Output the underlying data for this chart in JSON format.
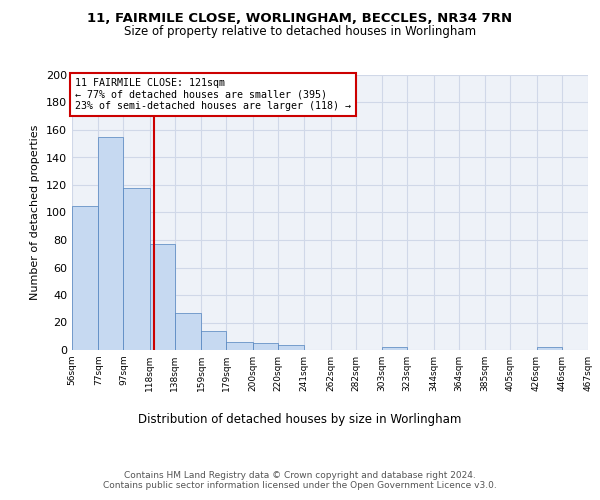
{
  "title1": "11, FAIRMILE CLOSE, WORLINGHAM, BECCLES, NR34 7RN",
  "title2": "Size of property relative to detached houses in Worlingham",
  "xlabel": "Distribution of detached houses by size in Worlingham",
  "ylabel": "Number of detached properties",
  "bin_edges": [
    56,
    77,
    97,
    118,
    138,
    159,
    179,
    200,
    220,
    241,
    262,
    282,
    303,
    323,
    344,
    364,
    385,
    405,
    426,
    446,
    467
  ],
  "bar_heights": [
    105,
    155,
    118,
    77,
    27,
    14,
    6,
    5,
    4,
    0,
    0,
    0,
    2,
    0,
    0,
    0,
    0,
    0,
    2,
    0
  ],
  "bar_color": "#c6d9f1",
  "bar_edgecolor": "#4f81bd",
  "grid_color": "#d0d8e8",
  "background_color": "#eef2f8",
  "vline_x": 121,
  "vline_color": "#cc0000",
  "annotation_text": "11 FAIRMILE CLOSE: 121sqm\n← 77% of detached houses are smaller (395)\n23% of semi-detached houses are larger (118) →",
  "annotation_box_color": "#cc0000",
  "ylim": [
    0,
    200
  ],
  "yticks": [
    0,
    20,
    40,
    60,
    80,
    100,
    120,
    140,
    160,
    180,
    200
  ],
  "footer_text": "Contains HM Land Registry data © Crown copyright and database right 2024.\nContains public sector information licensed under the Open Government Licence v3.0.",
  "tick_labels": [
    "56sqm",
    "77sqm",
    "97sqm",
    "118sqm",
    "138sqm",
    "159sqm",
    "179sqm",
    "200sqm",
    "220sqm",
    "241sqm",
    "262sqm",
    "282sqm",
    "303sqm",
    "323sqm",
    "344sqm",
    "364sqm",
    "385sqm",
    "405sqm",
    "426sqm",
    "446sqm",
    "467sqm"
  ]
}
